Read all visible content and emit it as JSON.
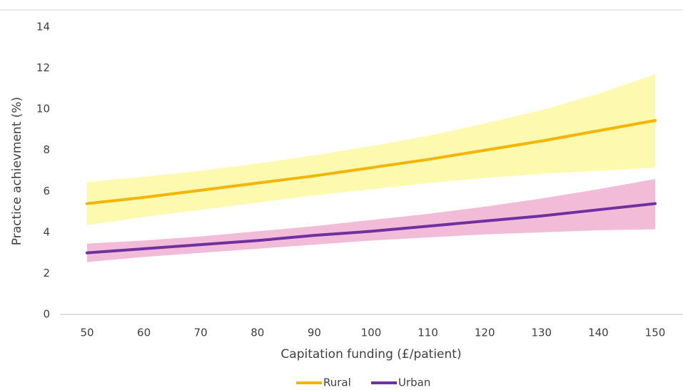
{
  "chart_data": {
    "type": "line",
    "x_label": "Capitation funding (£/patient)",
    "y_label": "Practice achievment  (%)",
    "x": [
      50,
      60,
      70,
      80,
      90,
      100,
      110,
      120,
      130,
      140,
      150
    ],
    "xlim": [
      50,
      150
    ],
    "xticks": [
      50,
      60,
      70,
      80,
      90,
      100,
      110,
      120,
      130,
      140,
      150
    ],
    "ylim": [
      0,
      14
    ],
    "yticks": [
      0,
      2,
      4,
      6,
      8,
      10,
      12,
      14
    ],
    "grid": false,
    "legend": "bottom",
    "series": [
      {
        "name": "Rural",
        "color": "#f5b400",
        "band_color": "#fdf9ae",
        "values": [
          5.4,
          5.7,
          6.05,
          6.4,
          6.75,
          7.15,
          7.55,
          8.0,
          8.45,
          8.95,
          9.45
        ],
        "upper": [
          6.45,
          6.7,
          7.0,
          7.35,
          7.75,
          8.2,
          8.7,
          9.3,
          9.95,
          10.75,
          11.7
        ],
        "lower": [
          4.35,
          4.75,
          5.1,
          5.45,
          5.8,
          6.1,
          6.4,
          6.65,
          6.85,
          7.0,
          7.15
        ]
      },
      {
        "name": "Urban",
        "color": "#7030a0",
        "band_color": "#f2bcd9",
        "values": [
          3.0,
          3.2,
          3.4,
          3.6,
          3.85,
          4.05,
          4.3,
          4.55,
          4.8,
          5.1,
          5.4
        ],
        "upper": [
          3.45,
          3.6,
          3.8,
          4.05,
          4.3,
          4.6,
          4.9,
          5.25,
          5.65,
          6.1,
          6.6
        ],
        "lower": [
          2.55,
          2.8,
          3.0,
          3.2,
          3.4,
          3.6,
          3.75,
          3.9,
          4.0,
          4.1,
          4.15
        ]
      }
    ]
  }
}
